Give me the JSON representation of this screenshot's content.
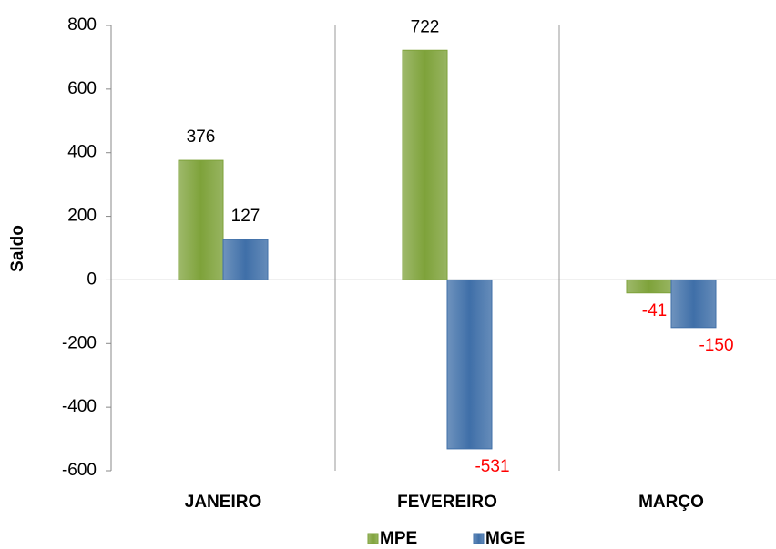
{
  "chart_data": {
    "type": "bar",
    "y_label": "Saldo",
    "categories": [
      "JANEIRO",
      "FEVEREIRO",
      "MARÇO"
    ],
    "series": [
      {
        "name": "MPE",
        "color": "#7ea23a",
        "values": [
          376,
          722,
          -41
        ]
      },
      {
        "name": "MGE",
        "color": "#3f6fa8",
        "values": [
          127,
          -531,
          -150
        ]
      }
    ],
    "ylim": [
      -600,
      800
    ],
    "yticks": [
      -600,
      -400,
      -200,
      0,
      200,
      400,
      600,
      800
    ],
    "negative_label_color": "#ff0000",
    "legend": "bottom"
  }
}
